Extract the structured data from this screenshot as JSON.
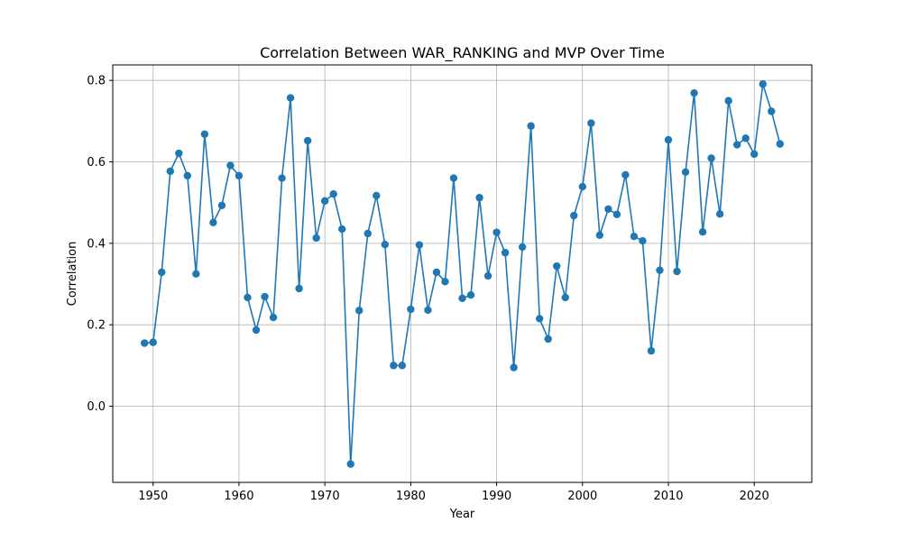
{
  "chart_data": {
    "type": "line",
    "title": "Correlation Between WAR_RANKING and MVP Over Time",
    "xlabel": "Year",
    "ylabel": "Correlation",
    "xlim": [
      1945.3,
      2026.7
    ],
    "ylim": [
      -0.187,
      0.838
    ],
    "xticks": [
      1950,
      1960,
      1970,
      1980,
      1990,
      2000,
      2010,
      2020
    ],
    "yticks": [
      0.0,
      0.2,
      0.4,
      0.6,
      0.8
    ],
    "ytick_labels": [
      "0.0",
      "0.2",
      "0.4",
      "0.6",
      "0.8"
    ],
    "grid": true,
    "line_color": "#1f77b4",
    "series": [
      {
        "x": [
          1949,
          1950,
          1951,
          1952,
          1953,
          1954,
          1955,
          1956,
          1957,
          1958,
          1959,
          1960,
          1961,
          1962,
          1963,
          1964,
          1965,
          1966,
          1967,
          1968,
          1969,
          1970,
          1971,
          1972,
          1973,
          1974,
          1975,
          1976,
          1977,
          1978,
          1979,
          1980,
          1981,
          1982,
          1983,
          1984,
          1985,
          1986,
          1987,
          1988,
          1989,
          1990,
          1991,
          1992,
          1993,
          1994,
          1995,
          1996,
          1997,
          1998,
          1999,
          2000,
          2001,
          2002,
          2003,
          2004,
          2005,
          2006,
          2007,
          2008,
          2009,
          2010,
          2011,
          2012,
          2013,
          2014,
          2015,
          2016,
          2017,
          2018,
          2019,
          2020,
          2021,
          2022,
          2023
        ],
        "values": [
          0.155,
          0.157,
          0.329,
          0.577,
          0.621,
          0.566,
          0.325,
          0.668,
          0.451,
          0.493,
          0.591,
          0.566,
          0.267,
          0.187,
          0.269,
          0.218,
          0.56,
          0.757,
          0.289,
          0.652,
          0.413,
          0.504,
          0.521,
          0.435,
          -0.142,
          0.235,
          0.424,
          0.517,
          0.397,
          0.1,
          0.1,
          0.238,
          0.396,
          0.236,
          0.329,
          0.306,
          0.56,
          0.265,
          0.273,
          0.512,
          0.32,
          0.427,
          0.377,
          0.095,
          0.391,
          0.688,
          0.215,
          0.165,
          0.344,
          0.267,
          0.468,
          0.539,
          0.695,
          0.42,
          0.484,
          0.471,
          0.568,
          0.417,
          0.406,
          0.136,
          0.334,
          0.654,
          0.331,
          0.575,
          0.769,
          0.428,
          0.609,
          0.472,
          0.75,
          0.642,
          0.658,
          0.619,
          0.791,
          0.724,
          0.644
        ]
      }
    ]
  }
}
